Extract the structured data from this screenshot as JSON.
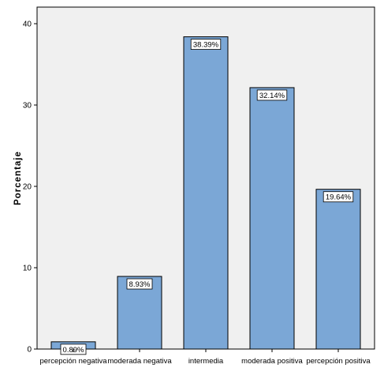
{
  "chart_data": {
    "type": "bar",
    "title": "",
    "xlabel": "",
    "ylabel": "Porcentaje",
    "categories": [
      "percepción negativa",
      "moderada negativa",
      "intermedia",
      "moderada positiva",
      "percepción positiva"
    ],
    "values": [
      0.89,
      8.93,
      38.39,
      32.14,
      19.64
    ],
    "data_labels": [
      "0.89%",
      "8.93%",
      "38.39%",
      "32.14%",
      "19.64%"
    ],
    "ylim": [
      0,
      40
    ],
    "yticks": [
      0,
      10,
      20,
      30,
      40
    ],
    "grid": false,
    "legend": "none",
    "colors": {
      "bar_fill": "#7ba7d6",
      "bar_stroke": "#000000",
      "plot_background": "#f0f0f0",
      "label_box": "#ffffff"
    }
  }
}
